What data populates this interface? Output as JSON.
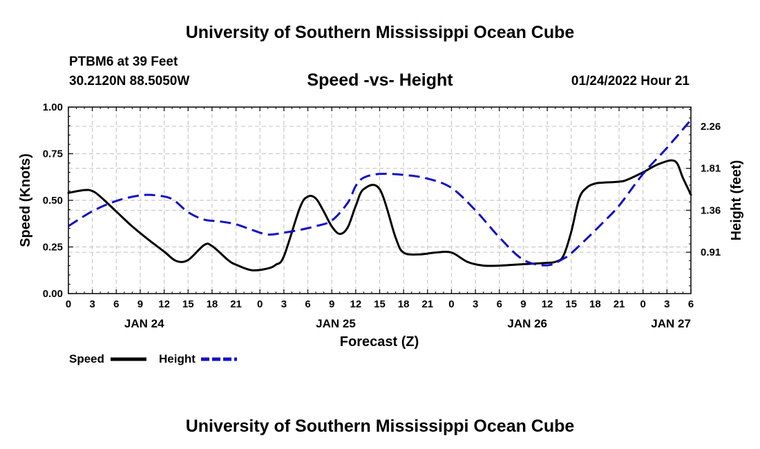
{
  "header": {
    "title": "University of Southern Mississippi Ocean Cube",
    "station": "PTBM6 at 39 Feet",
    "coords": "30.2120N  88.5050W",
    "timestamp": "01/24/2022 Hour 21"
  },
  "footer": {
    "title": "University of Southern Mississippi Ocean Cube"
  },
  "chart_data": {
    "type": "line",
    "title": "Speed -vs- Height",
    "xlabel": "Forecast (Z)",
    "ylabel": "Speed (Knots)",
    "y2label": "Height (feet)",
    "xlim": [
      0,
      78
    ],
    "ylim": [
      0,
      1.0
    ],
    "y2lim": [
      0.467,
      2.467
    ],
    "grid": true,
    "legend_position": "bottom-left",
    "x_ticks": [
      0,
      3,
      6,
      9,
      12,
      15,
      18,
      21,
      24,
      27,
      30,
      33,
      36,
      39,
      42,
      45,
      48,
      51,
      54,
      57,
      60,
      63,
      66,
      69,
      72,
      75,
      78
    ],
    "x_tick_labels": [
      "0",
      "3",
      "6",
      "9",
      "12",
      "15",
      "18",
      "21",
      "0",
      "3",
      "6",
      "9",
      "12",
      "15",
      "18",
      "21",
      "0",
      "3",
      "6",
      "9",
      "12",
      "15",
      "18",
      "21",
      "0",
      "3",
      "6"
    ],
    "date_labels": [
      {
        "hours": 9.5,
        "label": "JAN 24"
      },
      {
        "hours": 33.5,
        "label": "JAN 25"
      },
      {
        "hours": 57.5,
        "label": "JAN 26"
      },
      {
        "hours": 75.5,
        "label": "JAN 27"
      }
    ],
    "y_ticks": [
      0.0,
      0.25,
      0.5,
      0.75,
      1.0
    ],
    "y_tick_labels": [
      "0.00",
      "0.25",
      "0.50",
      "0.75",
      "1.00"
    ],
    "y2_ticks": [
      0.91,
      1.36,
      1.81,
      2.26
    ],
    "y2_tick_labels": [
      "0.91",
      "1.36",
      "1.81",
      "2.26"
    ],
    "series": [
      {
        "name": "Speed",
        "axis": "left",
        "color": "#000000",
        "style": "solid",
        "x": [
          0,
          2,
          3,
          4,
          6,
          8,
          10,
          12,
          13.5,
          15,
          17,
          18,
          20,
          21,
          23,
          25,
          26,
          27,
          29,
          30,
          31,
          32,
          33,
          34,
          35,
          36,
          37,
          39,
          41,
          42,
          44,
          46,
          48,
          50,
          52,
          54,
          56,
          58,
          60,
          61,
          62,
          63,
          64,
          65,
          66,
          67,
          69,
          70,
          72,
          74,
          76,
          77,
          78
        ],
        "values": [
          0.54,
          0.555,
          0.55,
          0.52,
          0.44,
          0.36,
          0.29,
          0.225,
          0.175,
          0.18,
          0.26,
          0.255,
          0.18,
          0.155,
          0.125,
          0.135,
          0.155,
          0.2,
          0.46,
          0.52,
          0.51,
          0.44,
          0.36,
          0.32,
          0.355,
          0.47,
          0.56,
          0.56,
          0.3,
          0.22,
          0.21,
          0.22,
          0.22,
          0.17,
          0.15,
          0.15,
          0.155,
          0.16,
          0.165,
          0.17,
          0.2,
          0.33,
          0.51,
          0.57,
          0.59,
          0.595,
          0.6,
          0.61,
          0.65,
          0.695,
          0.71,
          0.62,
          0.53
        ]
      },
      {
        "name": "Height",
        "axis": "right",
        "color": "#1010c8",
        "style": "dashed",
        "x": [
          0,
          3,
          6,
          9,
          11,
          13,
          15,
          17,
          19,
          21,
          23,
          25,
          27,
          29,
          31,
          33,
          35,
          36,
          37,
          39,
          42,
          45,
          48,
          51,
          54,
          57,
          60,
          62,
          63,
          65,
          67,
          69,
          72,
          75,
          78
        ],
        "values": [
          1.19,
          1.35,
          1.46,
          1.52,
          1.52,
          1.48,
          1.34,
          1.26,
          1.24,
          1.21,
          1.15,
          1.1,
          1.12,
          1.15,
          1.19,
          1.25,
          1.44,
          1.62,
          1.71,
          1.75,
          1.74,
          1.7,
          1.6,
          1.36,
          1.07,
          0.83,
          0.77,
          0.84,
          0.9,
          1.06,
          1.23,
          1.41,
          1.75,
          2.03,
          2.33
        ]
      }
    ]
  }
}
